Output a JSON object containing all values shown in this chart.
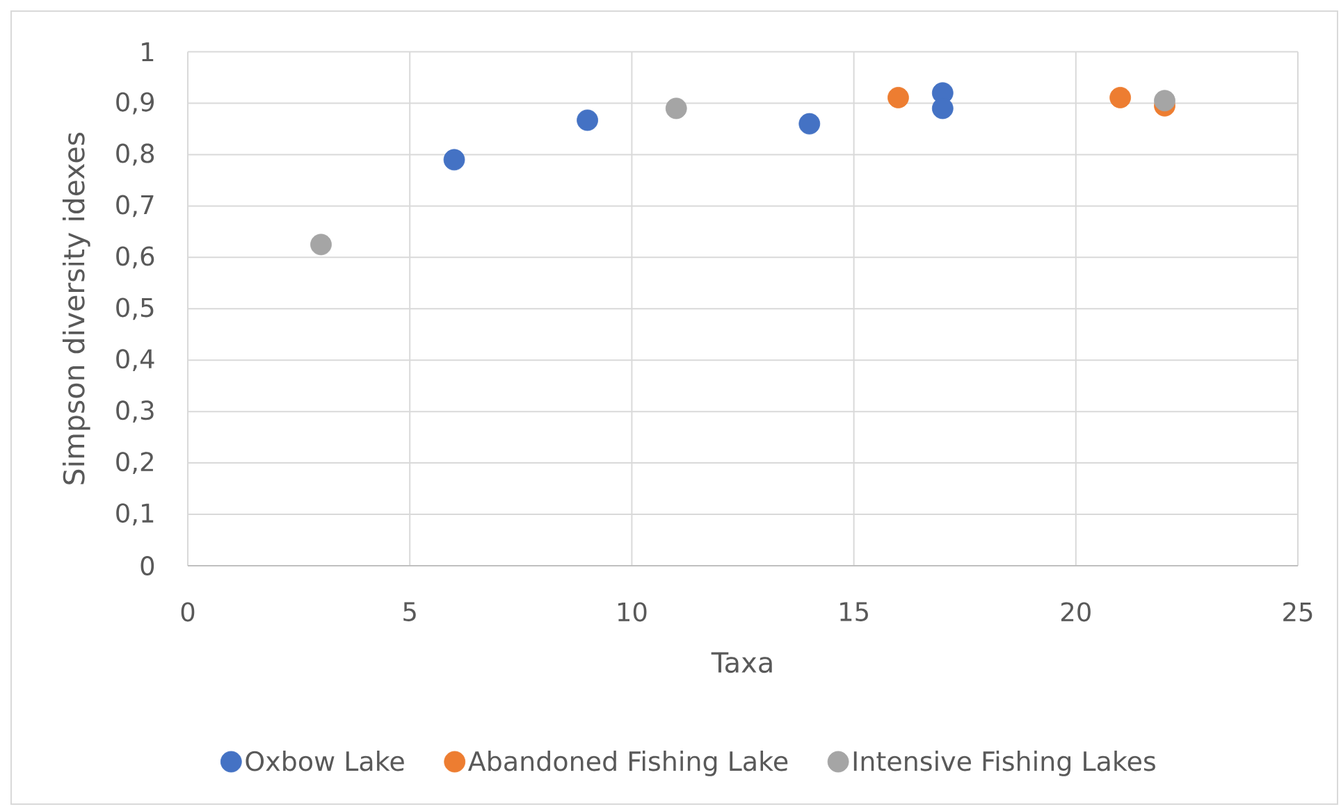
{
  "chart_data": {
    "type": "scatter",
    "xlabel": "Taxa",
    "ylabel": "Simpson diversity idexes",
    "series": [
      {
        "name": "Oxbow Lake",
        "color": "#4472c4",
        "x": [
          6,
          9,
          14,
          17,
          17
        ],
        "values": [
          0.79,
          0.867,
          0.86,
          0.92,
          0.89
        ]
      },
      {
        "name": "Abandoned Fishing Lake",
        "color": "#ed7d31",
        "x": [
          16,
          21,
          22
        ],
        "values": [
          0.911,
          0.911,
          0.895
        ]
      },
      {
        "name": "Intensive Fishing Lakes",
        "color": "#a5a5a5",
        "x": [
          3,
          11,
          22
        ],
        "values": [
          0.625,
          0.89,
          0.905
        ]
      }
    ],
    "xlim": [
      0,
      25
    ],
    "ylim": [
      0,
      1
    ],
    "xticks": [
      0,
      5,
      10,
      15,
      20,
      25
    ],
    "yticks": [
      0,
      {
        "value": 0.1,
        "label": "0,1"
      },
      {
        "value": 0.2,
        "label": "0,2"
      },
      {
        "value": 0.3,
        "label": "0,3"
      },
      {
        "value": 0.4,
        "label": "0,4"
      },
      {
        "value": 0.5,
        "label": "0,5"
      },
      {
        "value": 0.6,
        "label": "0,6"
      },
      {
        "value": 0.7,
        "label": "0,7"
      },
      {
        "value": 0.8,
        "label": "0,8"
      },
      {
        "value": 0.9,
        "label": "0,9"
      },
      1
    ],
    "grid": true,
    "legend": "bottom",
    "marker": "circle"
  }
}
